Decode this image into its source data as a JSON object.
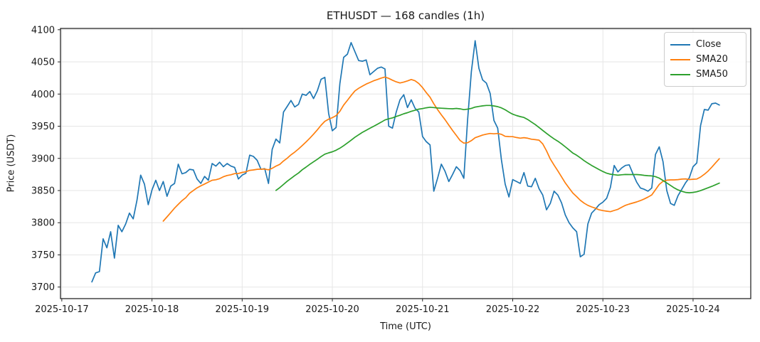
{
  "figure": {
    "title": "ETHUSDT — 168 candles (1h)",
    "xlabel": "Time (UTC)",
    "ylabel": "Price (USDT)"
  },
  "legend": {
    "position": "upper right",
    "items": [
      {
        "label": "Close",
        "color": "#1f77b4"
      },
      {
        "label": "SMA20",
        "color": "#ff7f0e"
      },
      {
        "label": "SMA50",
        "color": "#2ca02c"
      }
    ]
  },
  "chart_data": {
    "type": "line",
    "title": "ETHUSDT — 168 candles (1h)",
    "xlabel": "Time (UTC)",
    "ylabel": "Price (USDT)",
    "n_points": 168,
    "x_start": "2025-10-17 08:00",
    "x_start_offset_hours": 8,
    "x_interval_hours": 1,
    "x_tick_labels": [
      "2025-10-17",
      "2025-10-18",
      "2025-10-19",
      "2025-10-20",
      "2025-10-21",
      "2025-10-22",
      "2025-10-23",
      "2025-10-24"
    ],
    "x_tick_hours": [
      0,
      24,
      48,
      72,
      96,
      120,
      144,
      168
    ],
    "xlim_hours_from_first_tick": [
      -0.35,
      183.35
    ],
    "y_ticks": [
      3700,
      3750,
      3800,
      3850,
      3900,
      3950,
      4000,
      4050,
      4100
    ],
    "ylim": [
      3682,
      4102
    ],
    "grid": true,
    "legend_position": "upper right",
    "series": [
      {
        "name": "Close",
        "color": "#1f77b4",
        "values": [
          3708,
          3722,
          3724,
          3775,
          3761,
          3786,
          3745,
          3796,
          3786,
          3798,
          3815,
          3806,
          3835,
          3874,
          3860,
          3828,
          3851,
          3866,
          3850,
          3864,
          3841,
          3857,
          3861,
          3891,
          3876,
          3878,
          3883,
          3882,
          3868,
          3861,
          3872,
          3866,
          3892,
          3888,
          3894,
          3887,
          3892,
          3888,
          3886,
          3868,
          3874,
          3877,
          3905,
          3903,
          3897,
          3883,
          3884,
          3861,
          3914,
          3930,
          3924,
          3972,
          3981,
          3990,
          3980,
          3984,
          4000,
          3998,
          4004,
          3993,
          4005,
          4023,
          4026,
          3970,
          3943,
          3948,
          4016,
          4057,
          4062,
          4080,
          4066,
          4052,
          4051,
          4053,
          4030,
          4035,
          4040,
          4042,
          4039,
          3950,
          3947,
          3972,
          3991,
          3999,
          3979,
          3991,
          3978,
          3972,
          3934,
          3926,
          3921,
          3849,
          3869,
          3891,
          3880,
          3864,
          3875,
          3887,
          3881,
          3869,
          3960,
          4035,
          4083,
          4040,
          4022,
          4017,
          4001,
          3959,
          3947,
          3898,
          3860,
          3840,
          3867,
          3864,
          3861,
          3878,
          3857,
          3856,
          3869,
          3853,
          3843,
          3820,
          3830,
          3849,
          3843,
          3831,
          3812,
          3800,
          3792,
          3786,
          3747,
          3751,
          3798,
          3815,
          3821,
          3828,
          3832,
          3838,
          3855,
          3889,
          3879,
          3885,
          3889,
          3890,
          3876,
          3863,
          3854,
          3852,
          3849,
          3854,
          3906,
          3918,
          3895,
          3850,
          3830,
          3827,
          3842,
          3852,
          3862,
          3870,
          3887,
          3893,
          3951,
          3976,
          3975,
          3985,
          3986,
          3983
        ]
      },
      {
        "name": "SMA20",
        "color": "#ff7f0e",
        "derived": {
          "type": "sma",
          "window": 20,
          "of": "Close"
        }
      },
      {
        "name": "SMA50",
        "color": "#2ca02c",
        "derived": {
          "type": "sma",
          "window": 50,
          "of": "Close"
        }
      }
    ]
  }
}
